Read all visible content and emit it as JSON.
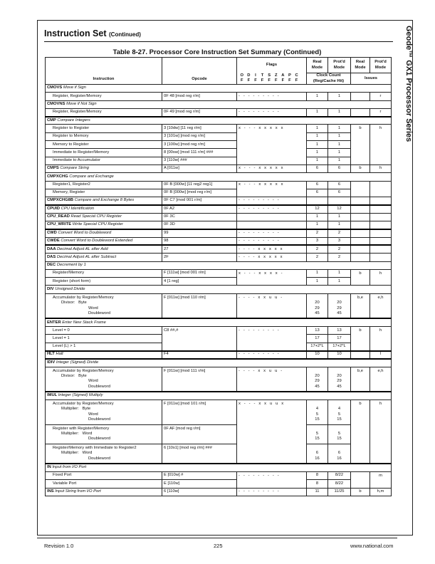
{
  "section": {
    "title": "Instruction Set",
    "suffix": "(Continued)"
  },
  "sidebar": "Geode™ GX1 Processor Series",
  "table_title": "Table 8-27.  Processor Core Instruction Set Summary  (Continued)",
  "headers": {
    "instruction": "Instruction",
    "opcode": "Opcode",
    "flags": "Flags",
    "real_mode": "Real Mode",
    "protd_mode": "Prot'd Mode",
    "clock_count": "Clock Count (Reg/Cache Hit)",
    "issues": "Issues",
    "flag_letters": [
      "O",
      "D",
      "I",
      "T",
      "S",
      "Z",
      "A",
      "P",
      "C"
    ],
    "flag_suffix": "F"
  },
  "rows": [
    {
      "k": "g",
      "name": "CMOVS",
      "desc": "Move if Sign"
    },
    {
      "k": "s",
      "lines": [
        "Register, Register/Memory"
      ],
      "op": "0F 48 [mod reg r/m]",
      "flags": "- - - - - - - - -",
      "real": [
        "1"
      ],
      "prot": [
        "1"
      ],
      "ir": "",
      "ip": "r"
    },
    {
      "k": "g",
      "name": "CMOVNS",
      "desc": "Move if Not Sign"
    },
    {
      "k": "s",
      "lines": [
        "Register, Register/Memory"
      ],
      "op": "0F 49 [mod reg r/m]",
      "flags": "- - - - - - - - -",
      "real": [
        "1"
      ],
      "prot": [
        "1"
      ],
      "ir": "",
      "ip": "r"
    },
    {
      "k": "g",
      "thick": true,
      "name": "CMP",
      "desc": "Compare Integers"
    },
    {
      "k": "s",
      "lines": [
        "Register to Register"
      ],
      "op": "3 [10dw] [11 reg r/m]",
      "flags": "x - - - x x x x x",
      "real": [
        "1"
      ],
      "prot": [
        "1"
      ],
      "ir": "b",
      "ip": "h",
      "mb": [
        "f",
        "ir",
        "ip"
      ]
    },
    {
      "k": "s",
      "lines": [
        "Register to Memory"
      ],
      "op": "3 [101w] [mod reg r/m]",
      "flags": "",
      "real": [
        "1"
      ],
      "prot": [
        "1"
      ],
      "ir": "",
      "ip": "",
      "mt": [
        "f",
        "ir",
        "ip"
      ],
      "mb": [
        "f",
        "ir",
        "ip"
      ]
    },
    {
      "k": "s",
      "lines": [
        "Memory to Register"
      ],
      "op": "3 [100w] [mod reg r/m]",
      "flags": "",
      "real": [
        "1"
      ],
      "prot": [
        "1"
      ],
      "ir": "",
      "ip": "",
      "mt": [
        "f",
        "ir",
        "ip"
      ],
      "mb": [
        "f",
        "ir",
        "ip"
      ]
    },
    {
      "k": "s",
      "lines": [
        "Immediate to Register/Memory"
      ],
      "op": "8 [00sw] [mod 111 r/m] ###",
      "flags": "",
      "real": [
        "1"
      ],
      "prot": [
        "1"
      ],
      "ir": "",
      "ip": "",
      "mt": [
        "f",
        "ir",
        "ip"
      ],
      "mb": [
        "f",
        "ir",
        "ip"
      ]
    },
    {
      "k": "s",
      "lines": [
        "Immediate to Accumulator"
      ],
      "op": "3 [110w] ###",
      "flags": "",
      "real": [
        "1"
      ],
      "prot": [
        "1"
      ],
      "ir": "",
      "ip": "",
      "mt": [
        "f",
        "ir",
        "ip"
      ]
    },
    {
      "k": "m",
      "name": "CMPS",
      "desc": "Compare String",
      "op": "A [011w]",
      "flags": "x - - - x x x x x",
      "real": [
        "6"
      ],
      "prot": [
        "6"
      ],
      "ir": "b",
      "ip": "h"
    },
    {
      "k": "g",
      "name": "CMPXCHG",
      "desc": "Compare and Exchange"
    },
    {
      "k": "s",
      "lines": [
        "Register1, Register2"
      ],
      "op": "0F B [000w] [11 reg2 reg1]",
      "flags": "x - - - x x x x x",
      "real": [
        "6"
      ],
      "prot": [
        "6"
      ],
      "ir": "",
      "ip": "",
      "mb": [
        "f",
        "ir",
        "ip"
      ]
    },
    {
      "k": "s",
      "lines": [
        "Memory, Register"
      ],
      "op": "0F B [000w] [mod reg r/m]",
      "flags": "",
      "real": [
        "6"
      ],
      "prot": [
        "6"
      ],
      "ir": "",
      "ip": "",
      "mt": [
        "f",
        "ir",
        "ip"
      ]
    },
    {
      "k": "m",
      "name": "CMPXCHG8B",
      "desc": "Compare and Exchange 8 Bytes",
      "op": "0F C7 [mod 001 r/m]",
      "flags": "- - - - - - - - -",
      "real": [
        ""
      ],
      "prot": [
        ""
      ],
      "ir": "",
      "ip": ""
    },
    {
      "k": "m",
      "thick": true,
      "name": "CPUID",
      "desc": "CPU Identification",
      "op": "0F A2",
      "flags": "- - - - - - - - -",
      "real": [
        "12"
      ],
      "prot": [
        "12"
      ],
      "ir": "",
      "ip": ""
    },
    {
      "k": "m",
      "name": "CPU_READ",
      "desc": "Read Special CPU Register",
      "op": "0F 3C",
      "flags": "",
      "real": [
        "1"
      ],
      "prot": [
        "1"
      ],
      "ir": "",
      "ip": ""
    },
    {
      "k": "m",
      "name": "CPU_WRITE",
      "desc": "Write Special CPU Register",
      "op": "0F 3D",
      "flags": "",
      "real": [
        "1"
      ],
      "prot": [
        "1"
      ],
      "ir": "",
      "ip": ""
    },
    {
      "k": "m",
      "thick": true,
      "name": "CWD",
      "desc": "Convert Word to Doubleword",
      "op": "99",
      "flags": "- - - - - - - - -",
      "real": [
        "2"
      ],
      "prot": [
        "2"
      ],
      "ir": "",
      "ip": ""
    },
    {
      "k": "m",
      "name": "CWDE",
      "desc": "Convert Word to Doubleword Extended",
      "op": "98",
      "flags": "- - - - - - - - -",
      "real": [
        "3"
      ],
      "prot": [
        "3"
      ],
      "ir": "",
      "ip": ""
    },
    {
      "k": "m",
      "thick": true,
      "name": "DAA",
      "desc": "Decimal Adjust AL after Add",
      "op": "27",
      "flags": "- - - - x x x x x",
      "real": [
        "2"
      ],
      "prot": [
        "2"
      ],
      "ir": "",
      "ip": ""
    },
    {
      "k": "m",
      "name": "DAS",
      "desc": "Decimal Adjust AL after Subtract",
      "op": "2F",
      "flags": "- - - - x x x x x",
      "real": [
        "2"
      ],
      "prot": [
        "2"
      ],
      "ir": "",
      "ip": ""
    },
    {
      "k": "g",
      "name": "DEC",
      "desc": "Decrement by 1"
    },
    {
      "k": "s",
      "lines": [
        "Register/Memory"
      ],
      "op": "F [111w] [mod 001 r/m]",
      "flags": "x - - - x x x x -",
      "real": [
        "1"
      ],
      "prot": [
        "1"
      ],
      "ir": "b",
      "ip": "h",
      "mb": [
        "f",
        "ir",
        "ip"
      ]
    },
    {
      "k": "s",
      "lines": [
        "Register (short form)"
      ],
      "op": "4 [1 reg]",
      "flags": "",
      "real": [
        "1"
      ],
      "prot": [
        "1"
      ],
      "ir": "",
      "ip": "",
      "mt": [
        "f",
        "ir",
        "ip"
      ]
    },
    {
      "k": "g",
      "name": "DIV",
      "desc": "Unsigned Divide"
    },
    {
      "k": "s",
      "ml": true,
      "lines": [
        "Accumulator by Register/Memory",
        "Divisor:   Byte",
        "Word",
        "Doubleword"
      ],
      "op": "F [011w] [mod 110 r/m]",
      "flags": "- - - - x x u u -",
      "real": [
        "",
        "20",
        "29",
        "45"
      ],
      "prot": [
        "",
        "20",
        "29",
        "45"
      ],
      "ir": "b,e",
      "ip": "e,h"
    },
    {
      "k": "g",
      "thick": true,
      "name": "ENTER",
      "desc": "Enter New Stack Frame"
    },
    {
      "k": "s",
      "lines": [
        "Level = 0"
      ],
      "op": "C8 ##,#",
      "flags": "- - - - - - - - -",
      "real": [
        "13"
      ],
      "prot": [
        "13"
      ],
      "ir": "b",
      "ip": "h",
      "mb": [
        "o",
        "f",
        "ir",
        "ip"
      ]
    },
    {
      "k": "s",
      "lines": [
        "Level = 1"
      ],
      "op": "",
      "flags": "",
      "real": [
        "17"
      ],
      "prot": [
        "17"
      ],
      "ir": "",
      "ip": "",
      "mt": [
        "o",
        "f",
        "ir",
        "ip"
      ],
      "mb": [
        "o",
        "f",
        "ir",
        "ip"
      ]
    },
    {
      "k": "s",
      "lines": [
        "Level (L) > 1"
      ],
      "op": "",
      "flags": "",
      "real": [
        "17+2*L"
      ],
      "prot": [
        "17+2*L"
      ],
      "ir": "",
      "ip": "",
      "mt": [
        "o",
        "f",
        "ir",
        "ip"
      ]
    },
    {
      "k": "m",
      "thick": true,
      "name": "HLT",
      "desc": "Halt",
      "op": "F4",
      "flags": "- - - - - - - - -",
      "real": [
        "10"
      ],
      "prot": [
        "10"
      ],
      "ir": "",
      "ip": "l"
    },
    {
      "k": "g",
      "thick": true,
      "name": "IDIV",
      "desc": "Integer (Signed) Divide"
    },
    {
      "k": "s",
      "ml": true,
      "lines": [
        "Accumulator by Register/Memory",
        "Divisor:   Byte",
        "Word",
        "Doubleword"
      ],
      "op": "F [011w] [mod 111 r/m]",
      "flags": "- - - - x x u u -",
      "real": [
        "",
        "20",
        "29",
        "45"
      ],
      "prot": [
        "",
        "20",
        "29",
        "45"
      ],
      "ir": "b,e",
      "ip": "e,h"
    },
    {
      "k": "g",
      "thick": true,
      "name": "IMUL",
      "desc": "Integer (Signed) Multiply"
    },
    {
      "k": "s",
      "ml": true,
      "lines": [
        "Accumulator by Register/Memory",
        "Multiplier:   Byte",
        "Word",
        "Doubleword"
      ],
      "op": "F [011w] [mod 101 r/m]",
      "flags": "x - - - x x u u x",
      "real": [
        "",
        "4",
        "5",
        "15"
      ],
      "prot": [
        "",
        "4",
        "5",
        "15"
      ],
      "ir": "b",
      "ip": "h",
      "mb": [
        "f",
        "ir",
        "ip"
      ]
    },
    {
      "k": "s",
      "ml": true,
      "lines": [
        "Register with Register/Memory",
        "Multiplier:   Word",
        "Doubleword"
      ],
      "op": "0F AF [mod reg r/m]",
      "flags": "",
      "real": [
        "",
        "5",
        "15"
      ],
      "prot": [
        "",
        "5",
        "15"
      ],
      "ir": "",
      "ip": "",
      "mt": [
        "f",
        "ir",
        "ip"
      ],
      "mb": [
        "f",
        "ir",
        "ip"
      ]
    },
    {
      "k": "s",
      "ml": true,
      "lines": [
        "Register/Memory with Immediate to Register2",
        "Multiplier:   Word",
        "Doubleword"
      ],
      "op": "6 [10s1] [mod reg r/m] ###",
      "flags": "",
      "real": [
        "",
        "6",
        "16"
      ],
      "prot": [
        "",
        "6",
        "16"
      ],
      "ir": "",
      "ip": "",
      "mt": [
        "f",
        "ir",
        "ip"
      ]
    },
    {
      "k": "g",
      "thick": true,
      "name": "IN",
      "desc": "Input from I/O Port"
    },
    {
      "k": "s",
      "lines": [
        "Fixed Port"
      ],
      "op": "E [010w] #",
      "flags": "- - - - - - - - -",
      "real": [
        "8"
      ],
      "prot": [
        "8/22"
      ],
      "ir": "",
      "ip": "m",
      "mb": [
        "f",
        "ir",
        "ip"
      ]
    },
    {
      "k": "s",
      "lines": [
        "Variable Port"
      ],
      "op": "E [110w]",
      "flags": "",
      "real": [
        "8"
      ],
      "prot": [
        "8/22"
      ],
      "ir": "",
      "ip": "",
      "mt": [
        "f",
        "ir",
        "ip"
      ]
    },
    {
      "k": "m",
      "name": "INS",
      "desc": "Input String from I/O Port",
      "op": "6 [110w]",
      "flags": "- - - - - - - - -",
      "real": [
        "11"
      ],
      "prot": [
        "11/25"
      ],
      "ir": "b",
      "ip": "h,m"
    }
  ],
  "footer": {
    "revision": "Revision 1.0",
    "page": "225",
    "website": "www.national.com"
  }
}
